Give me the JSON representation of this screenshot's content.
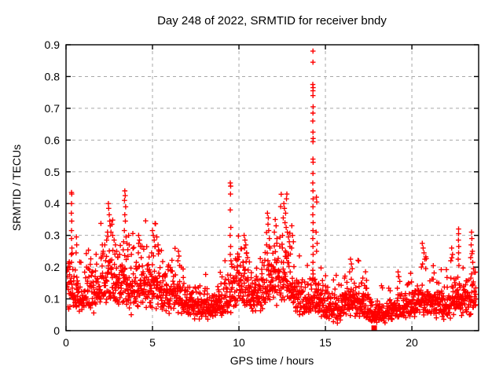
{
  "page": {
    "background": "#ffffff"
  },
  "chart_data": {
    "type": "scatter",
    "title": "Day 248 of 2022, SRMTID for receiver bndy",
    "xlabel": "GPS time / hours",
    "ylabel": "SRMTID / TECUs",
    "series_name": "SRMTID",
    "xlim": [
      0,
      23.86
    ],
    "ylim": [
      0,
      0.9
    ],
    "xticks": [
      {
        "value": 0,
        "label": "0"
      },
      {
        "value": 5,
        "label": "5"
      },
      {
        "value": 10,
        "label": "10"
      },
      {
        "value": 15,
        "label": "15"
      },
      {
        "value": 20,
        "label": "20"
      }
    ],
    "yticks": [
      {
        "value": 0,
        "label": "0"
      },
      {
        "value": 0.1,
        "label": "0.1"
      },
      {
        "value": 0.2,
        "label": "0.2"
      },
      {
        "value": 0.3,
        "label": "0.3"
      },
      {
        "value": 0.4,
        "label": "0.4"
      },
      {
        "value": 0.5,
        "label": "0.5"
      },
      {
        "value": 0.6,
        "label": "0.6"
      },
      {
        "value": 0.7,
        "label": "0.7"
      },
      {
        "value": 0.8,
        "label": "0.8"
      },
      {
        "value": 0.9,
        "label": "0.9"
      }
    ],
    "grid": true,
    "legend": "none",
    "marker": {
      "shape": "plus",
      "color": "#ff0000",
      "size": 7,
      "stroke": 1.4
    },
    "grid_color": "#a8a8a8",
    "axis_color": "#000000",
    "flag_point": {
      "x": 17.82,
      "y": 0.008,
      "shape": "filled-square",
      "color": "#ff0000",
      "size": 7
    },
    "sampling": {
      "t_start": 0.05,
      "t_end": 23.72,
      "dt": 0.012,
      "jitter": 0.005,
      "seed": 42
    },
    "noise": {
      "sigma": 0.32,
      "outlier_prob": 0.03,
      "outlier_gain": [
        1.5,
        2.2
      ],
      "min": 0.015,
      "cap_factor": 2.4,
      "cap": 0.5
    },
    "baseline_profile": [
      [
        0.0,
        0.15
      ],
      [
        0.5,
        0.12
      ],
      [
        1.0,
        0.11
      ],
      [
        1.5,
        0.125
      ],
      [
        2.0,
        0.14
      ],
      [
        2.5,
        0.16
      ],
      [
        3.0,
        0.14
      ],
      [
        3.4,
        0.16
      ],
      [
        3.8,
        0.125
      ],
      [
        4.2,
        0.14
      ],
      [
        4.7,
        0.145
      ],
      [
        5.2,
        0.14
      ],
      [
        5.7,
        0.115
      ],
      [
        6.2,
        0.11
      ],
      [
        6.7,
        0.1
      ],
      [
        7.2,
        0.08
      ],
      [
        7.7,
        0.07
      ],
      [
        8.2,
        0.075
      ],
      [
        8.7,
        0.08
      ],
      [
        9.2,
        0.095
      ],
      [
        9.5,
        0.12
      ],
      [
        9.9,
        0.14
      ],
      [
        10.4,
        0.15
      ],
      [
        10.9,
        0.11
      ],
      [
        11.4,
        0.13
      ],
      [
        11.9,
        0.16
      ],
      [
        12.4,
        0.18
      ],
      [
        12.8,
        0.17
      ],
      [
        13.2,
        0.12
      ],
      [
        13.6,
        0.09
      ],
      [
        14.0,
        0.085
      ],
      [
        14.3,
        0.11
      ],
      [
        14.7,
        0.09
      ],
      [
        15.1,
        0.075
      ],
      [
        15.5,
        0.07
      ],
      [
        16.0,
        0.08
      ],
      [
        16.5,
        0.1
      ],
      [
        17.0,
        0.09
      ],
      [
        17.5,
        0.07
      ],
      [
        18.0,
        0.058
      ],
      [
        18.5,
        0.06
      ],
      [
        19.0,
        0.07
      ],
      [
        19.5,
        0.072
      ],
      [
        20.0,
        0.08
      ],
      [
        20.5,
        0.1
      ],
      [
        21.0,
        0.095
      ],
      [
        21.5,
        0.08
      ],
      [
        22.0,
        0.08
      ],
      [
        22.4,
        0.1
      ],
      [
        22.8,
        0.11
      ],
      [
        23.2,
        0.1
      ],
      [
        23.72,
        0.12
      ]
    ],
    "peak_points": [
      [
        0.32,
        0.435
      ],
      [
        0.33,
        0.43
      ],
      [
        0.32,
        0.4
      ],
      [
        0.31,
        0.37
      ],
      [
        0.33,
        0.345
      ],
      [
        0.32,
        0.315
      ],
      [
        0.32,
        0.29
      ],
      [
        0.34,
        0.26
      ],
      [
        0.31,
        0.24
      ],
      [
        0.32,
        0.215
      ],
      [
        0.6,
        0.295
      ],
      [
        0.62,
        0.27
      ],
      [
        0.58,
        0.245
      ],
      [
        2.1,
        0.27
      ],
      [
        2.15,
        0.25
      ],
      [
        2.45,
        0.4
      ],
      [
        2.47,
        0.385
      ],
      [
        2.5,
        0.365
      ],
      [
        2.53,
        0.345
      ],
      [
        2.56,
        0.33
      ],
      [
        2.6,
        0.31
      ],
      [
        2.65,
        0.335
      ],
      [
        2.7,
        0.3
      ],
      [
        2.78,
        0.285
      ],
      [
        2.86,
        0.27
      ],
      [
        2.93,
        0.25
      ],
      [
        2.4,
        0.31
      ],
      [
        2.35,
        0.285
      ],
      [
        3.4,
        0.44
      ],
      [
        3.42,
        0.425
      ],
      [
        3.38,
        0.41
      ],
      [
        3.45,
        0.39
      ],
      [
        3.4,
        0.365
      ],
      [
        3.43,
        0.345
      ],
      [
        3.37,
        0.315
      ],
      [
        3.47,
        0.295
      ],
      [
        3.52,
        0.275
      ],
      [
        3.57,
        0.255
      ],
      [
        3.33,
        0.28
      ],
      [
        3.62,
        0.3
      ],
      [
        3.66,
        0.27
      ],
      [
        4.2,
        0.3
      ],
      [
        4.25,
        0.285
      ],
      [
        4.3,
        0.265
      ],
      [
        4.18,
        0.245
      ],
      [
        4.35,
        0.23
      ],
      [
        5.0,
        0.315
      ],
      [
        5.05,
        0.3
      ],
      [
        5.1,
        0.285
      ],
      [
        5.16,
        0.265
      ],
      [
        4.95,
        0.245
      ],
      [
        5.25,
        0.295
      ],
      [
        5.32,
        0.27
      ],
      [
        5.38,
        0.25
      ],
      [
        6.5,
        0.25
      ],
      [
        6.53,
        0.235
      ],
      [
        6.47,
        0.22
      ],
      [
        6.57,
        0.205
      ],
      [
        9.5,
        0.465
      ],
      [
        9.52,
        0.455
      ],
      [
        9.51,
        0.43
      ],
      [
        9.5,
        0.38
      ],
      [
        9.53,
        0.325
      ],
      [
        9.49,
        0.3
      ],
      [
        9.52,
        0.265
      ],
      [
        9.5,
        0.24
      ],
      [
        9.54,
        0.22
      ],
      [
        10.3,
        0.3
      ],
      [
        10.35,
        0.285
      ],
      [
        10.4,
        0.27
      ],
      [
        10.32,
        0.26
      ],
      [
        10.45,
        0.245
      ],
      [
        10.5,
        0.23
      ],
      [
        10.25,
        0.215
      ],
      [
        11.65,
        0.37
      ],
      [
        11.7,
        0.355
      ],
      [
        11.68,
        0.335
      ],
      [
        11.72,
        0.315
      ],
      [
        11.76,
        0.29
      ],
      [
        11.6,
        0.27
      ],
      [
        11.8,
        0.26
      ],
      [
        12.1,
        0.35
      ],
      [
        12.15,
        0.33
      ],
      [
        12.05,
        0.31
      ],
      [
        12.2,
        0.29
      ],
      [
        12.77,
        0.43
      ],
      [
        12.75,
        0.415
      ],
      [
        12.6,
        0.4
      ],
      [
        12.63,
        0.385
      ],
      [
        12.7,
        0.37
      ],
      [
        12.56,
        0.355
      ],
      [
        12.66,
        0.34
      ],
      [
        12.73,
        0.325
      ],
      [
        12.8,
        0.31
      ],
      [
        12.86,
        0.295
      ],
      [
        12.91,
        0.28
      ],
      [
        12.52,
        0.3
      ],
      [
        12.95,
        0.265
      ],
      [
        13.1,
        0.3
      ],
      [
        13.15,
        0.28
      ],
      [
        13.05,
        0.26
      ],
      [
        14.28,
        0.88
      ],
      [
        14.28,
        0.845
      ],
      [
        14.27,
        0.775
      ],
      [
        14.29,
        0.765
      ],
      [
        14.28,
        0.755
      ],
      [
        14.28,
        0.74
      ],
      [
        14.29,
        0.705
      ],
      [
        14.28,
        0.685
      ],
      [
        14.27,
        0.66
      ],
      [
        14.28,
        0.625
      ],
      [
        14.29,
        0.605
      ],
      [
        14.28,
        0.595
      ],
      [
        14.28,
        0.54
      ],
      [
        14.29,
        0.53
      ],
      [
        14.28,
        0.495
      ],
      [
        14.27,
        0.465
      ],
      [
        14.28,
        0.44
      ],
      [
        14.29,
        0.415
      ],
      [
        14.28,
        0.39
      ],
      [
        14.27,
        0.365
      ],
      [
        14.29,
        0.34
      ],
      [
        14.28,
        0.315
      ],
      [
        14.27,
        0.29
      ],
      [
        14.28,
        0.265
      ],
      [
        14.29,
        0.24
      ],
      [
        14.28,
        0.215
      ],
      [
        14.27,
        0.19
      ],
      [
        14.28,
        0.165
      ],
      [
        14.48,
        0.42
      ],
      [
        14.5,
        0.405
      ],
      [
        14.46,
        0.31
      ],
      [
        14.52,
        0.275
      ],
      [
        14.49,
        0.25
      ],
      [
        16.45,
        0.225
      ],
      [
        16.5,
        0.21
      ],
      [
        16.55,
        0.195
      ],
      [
        16.4,
        0.185
      ],
      [
        19.2,
        0.185
      ],
      [
        19.25,
        0.17
      ],
      [
        19.3,
        0.155
      ],
      [
        20.6,
        0.275
      ],
      [
        20.65,
        0.26
      ],
      [
        20.7,
        0.245
      ],
      [
        20.75,
        0.225
      ],
      [
        20.62,
        0.21
      ],
      [
        20.8,
        0.195
      ],
      [
        20.55,
        0.2
      ],
      [
        22.3,
        0.26
      ],
      [
        22.35,
        0.24
      ],
      [
        22.25,
        0.22
      ],
      [
        22.7,
        0.32
      ],
      [
        22.7,
        0.305
      ],
      [
        22.69,
        0.285
      ],
      [
        22.71,
        0.265
      ],
      [
        22.7,
        0.245
      ],
      [
        22.68,
        0.225
      ],
      [
        22.72,
        0.205
      ],
      [
        23.45,
        0.31
      ],
      [
        23.47,
        0.29
      ],
      [
        23.43,
        0.27
      ],
      [
        23.5,
        0.25
      ],
      [
        23.4,
        0.23
      ],
      [
        23.52,
        0.215
      ],
      [
        23.56,
        0.195
      ]
    ]
  }
}
